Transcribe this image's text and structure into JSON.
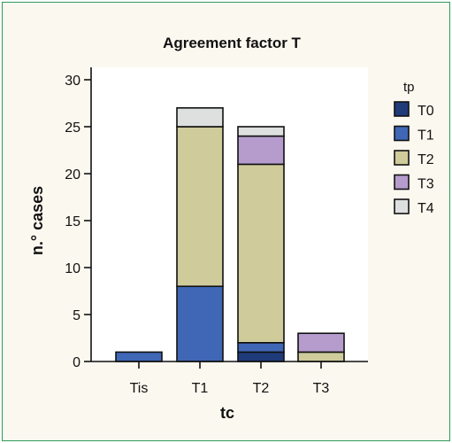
{
  "chart_data": {
    "type": "bar",
    "stacked": true,
    "title": "Agreement factor T",
    "xlabel": "tc",
    "ylabel": "n.° cases",
    "ylim": [
      0,
      30
    ],
    "yticks": [
      0,
      5,
      10,
      15,
      20,
      25,
      30
    ],
    "categories": [
      "Tis",
      "T1",
      "T2",
      "T3"
    ],
    "legend": {
      "title": "tp",
      "position": "right"
    },
    "series": [
      {
        "name": "T0",
        "color": "#1f3b7a",
        "values": [
          0,
          0,
          1,
          0
        ]
      },
      {
        "name": "T1",
        "color": "#3f67b5",
        "values": [
          1,
          8,
          1,
          0
        ]
      },
      {
        "name": "T2",
        "color": "#cfcb9b",
        "values": [
          0,
          17,
          19,
          1
        ]
      },
      {
        "name": "T3",
        "color": "#b69ccd",
        "values": [
          0,
          0,
          3,
          2
        ]
      },
      {
        "name": "T4",
        "color": "#dde0df",
        "values": [
          0,
          2,
          1,
          0
        ]
      }
    ]
  }
}
